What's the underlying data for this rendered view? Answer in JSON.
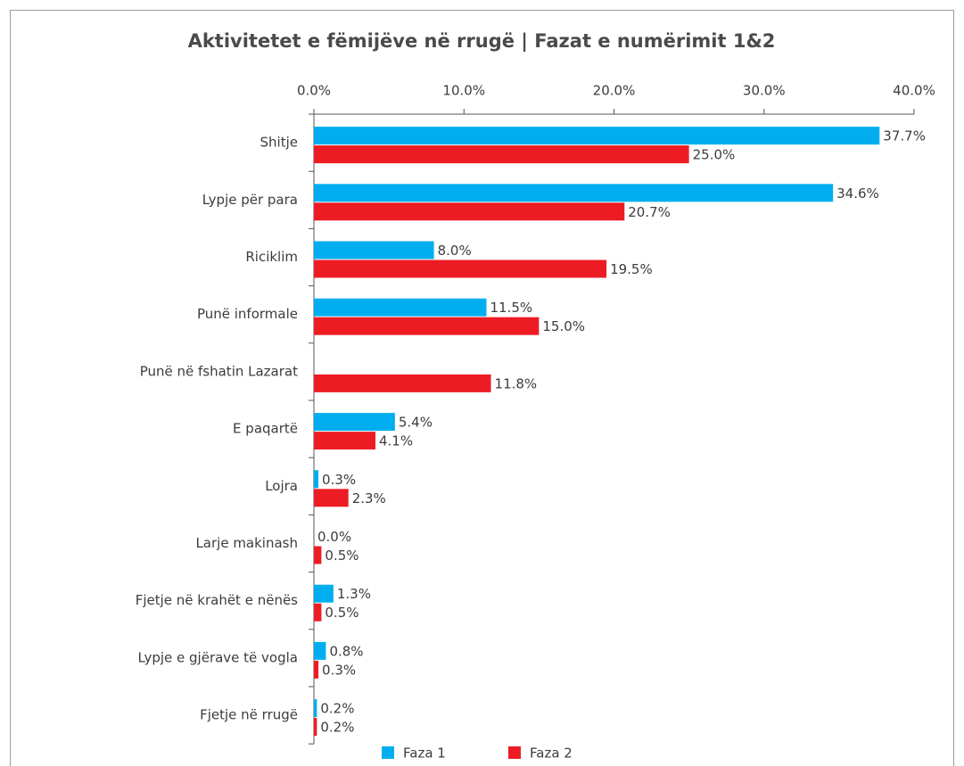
{
  "chart_data": {
    "type": "hbar",
    "title": "Aktivitetet e fëmijëve në rrugë | Fazat e numërimit 1&2",
    "categories": [
      "Shitje",
      "Lypje për para",
      "Riciklim",
      "Punë informale",
      "Punë në fshatin Lazarat",
      "E paqartë",
      "Lojra",
      "Larje makinash",
      "Fjetje në krahët e nënës",
      "Lypje e gjërave të vogla",
      "Fjetje në rrugë"
    ],
    "series": [
      {
        "name": "Faza 1",
        "color": "#00aeef",
        "values": [
          37.7,
          34.6,
          8.0,
          11.5,
          null,
          5.4,
          0.3,
          0.0,
          1.3,
          0.8,
          0.2
        ],
        "value_labels": [
          "37.7%",
          "34.6%",
          "8.0%",
          "11.5%",
          null,
          "5.4%",
          "0.3%",
          "0.0%",
          "1.3%",
          "0.8%",
          "0.2%"
        ]
      },
      {
        "name": "Faza 2",
        "color": "#ed1c24",
        "values": [
          25.0,
          20.7,
          19.5,
          15.0,
          11.8,
          4.1,
          2.3,
          0.5,
          0.5,
          0.3,
          0.2
        ],
        "value_labels": [
          "25.0%",
          "20.7%",
          "19.5%",
          "15.0%",
          "11.8%",
          "4.1%",
          "2.3%",
          "0.5%",
          "0.5%",
          "0.3%",
          "0.2%"
        ]
      }
    ],
    "xlim": [
      0,
      40
    ],
    "xticks": [
      {
        "value": 0,
        "label": "0.0%"
      },
      {
        "value": 10,
        "label": "10.0%"
      },
      {
        "value": 20,
        "label": "20.0%"
      },
      {
        "value": 30,
        "label": "30.0%"
      },
      {
        "value": 40,
        "label": "40.0%"
      }
    ],
    "legend": "bottom"
  }
}
